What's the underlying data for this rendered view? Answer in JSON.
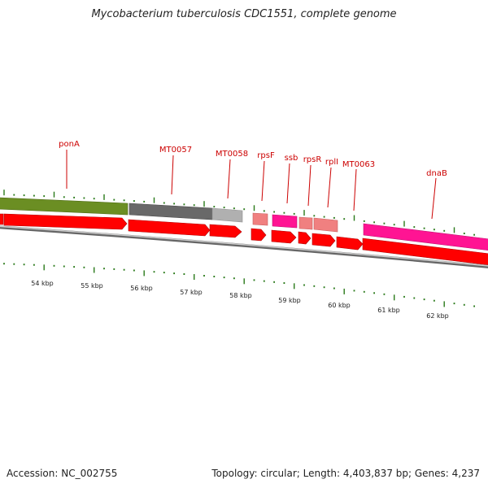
{
  "title": "Mycobacterium tuberculosis CDC1551, complete genome",
  "accession": "Accession: NC_002755",
  "summary": "Topology: circular; Length: 4,403,837 bp; Genes: 4,237",
  "colors": {
    "label": "#cc0000",
    "tick": "#2a7a1a",
    "backbone": "#888888",
    "cds": "#ff0000",
    "olive": "#6b8e23",
    "dark_gray": "#696969",
    "light_gray": "#b0b0b0",
    "magenta": "#ff1493",
    "pink": "#f08080"
  },
  "gene_labels": [
    {
      "id": "ponA",
      "text": "ponA"
    },
    {
      "id": "MT0057",
      "text": "MT0057"
    },
    {
      "id": "MT0058",
      "text": "MT0058"
    },
    {
      "id": "rpsF",
      "text": "rpsF"
    },
    {
      "id": "ssb",
      "text": "ssb"
    },
    {
      "id": "rpsR",
      "text": "rpsR"
    },
    {
      "id": "rplI",
      "text": "rplI"
    },
    {
      "id": "MT0063",
      "text": "MT0063"
    },
    {
      "id": "dnaB",
      "text": "dnaB"
    }
  ],
  "kbp_labels": [
    "54 kbp",
    "55 kbp",
    "56 kbp",
    "57 kbp",
    "58 kbp",
    "59 kbp",
    "60 kbp",
    "61 kbp",
    "62 kbp"
  ]
}
